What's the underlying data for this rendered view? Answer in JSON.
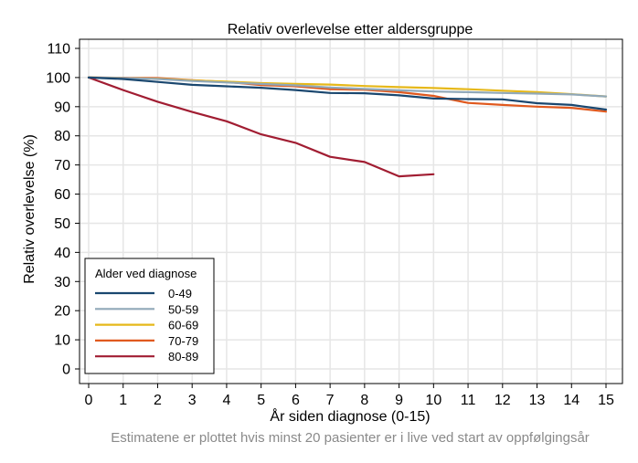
{
  "chart_data": {
    "type": "line",
    "title": "Relativ overlevelse etter aldersgruppe",
    "xlabel": "År siden diagnose (0-15)",
    "ylabel": "Relativ overlevelse (%)",
    "note": "Estimatene er plottet hvis minst 20 pasienter er i live ved start av oppfølgingsår",
    "xlim": [
      0,
      15
    ],
    "ylim": [
      0,
      110
    ],
    "x_ticks": [
      0,
      1,
      2,
      3,
      4,
      5,
      6,
      7,
      8,
      9,
      10,
      11,
      12,
      13,
      14,
      15
    ],
    "y_ticks": [
      0,
      10,
      20,
      30,
      40,
      50,
      60,
      70,
      80,
      90,
      100,
      110
    ],
    "grid": true,
    "legend": {
      "title": "Alder ved diagnose",
      "placement": "bottom-left",
      "entries": [
        "0-49",
        "50-59",
        "60-69",
        "70-79",
        "80-89"
      ]
    },
    "series": [
      {
        "name": "0-49",
        "color": "#1a476f",
        "x": [
          0,
          1,
          2,
          3,
          4,
          5,
          6,
          7,
          8,
          9,
          10,
          11,
          12,
          13,
          14,
          15
        ],
        "y": [
          100,
          99.5,
          98.5,
          97.5,
          97,
          96.5,
          95.7,
          94.7,
          94.6,
          93.9,
          92.8,
          92.6,
          92.5,
          91.2,
          90.6,
          89
        ]
      },
      {
        "name": "50-59",
        "color": "#90a8b8",
        "x": [
          0,
          1,
          2,
          3,
          4,
          5,
          6,
          7,
          8,
          9,
          10,
          11,
          12,
          13,
          14,
          15
        ],
        "y": [
          100,
          99.8,
          99.5,
          98.8,
          98.3,
          97.8,
          97.3,
          96.6,
          96.1,
          95.6,
          95.2,
          95,
          94.7,
          94.5,
          94.2,
          93.5
        ]
      },
      {
        "name": "60-69",
        "color": "#e6b81a",
        "x": [
          0,
          1,
          2,
          3,
          4,
          5,
          6,
          7,
          8,
          9,
          10,
          11,
          12,
          13,
          14,
          15
        ],
        "y": [
          100,
          99.8,
          99.6,
          99,
          98.6,
          98.1,
          97.8,
          97.6,
          97.1,
          96.7,
          96.4,
          96,
          95.5,
          95,
          94.3,
          93.5
        ]
      },
      {
        "name": "70-79",
        "color": "#e0591e",
        "x": [
          0,
          1,
          2,
          3,
          4,
          5,
          6,
          7,
          8,
          9,
          10,
          11,
          12,
          13,
          14,
          15
        ],
        "y": [
          100,
          99.9,
          99.8,
          99.1,
          98.5,
          97.4,
          97,
          96,
          95.8,
          95,
          93.7,
          91.3,
          90.6,
          90,
          89.6,
          88.3
        ]
      },
      {
        "name": "80-89",
        "color": "#a11d32",
        "x": [
          0,
          1,
          2,
          3,
          4,
          5,
          6,
          7,
          8,
          9,
          10
        ],
        "y": [
          100,
          95.7,
          91.7,
          88.2,
          85,
          80.5,
          77.6,
          72.8,
          71,
          66.1,
          66.8
        ]
      }
    ]
  }
}
